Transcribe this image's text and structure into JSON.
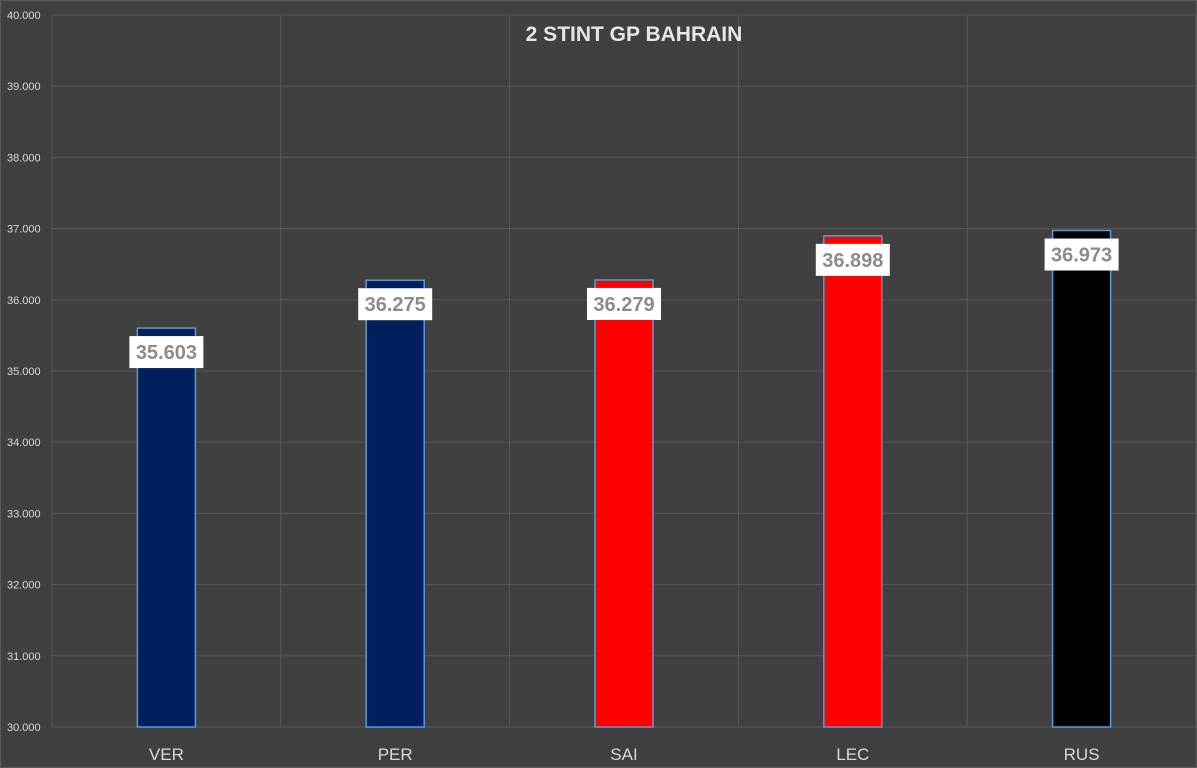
{
  "chart_data": {
    "type": "bar",
    "title": "2 STINT GP BAHRAIN",
    "xlabel": "",
    "ylabel": "",
    "categories": [
      "VER",
      "PER",
      "SAI",
      "LEC",
      "RUS"
    ],
    "values": [
      35.603,
      36.275,
      36.279,
      36.898,
      36.973
    ],
    "value_labels": [
      "35.603",
      "36.275",
      "36.279",
      "36.898",
      "36.973"
    ],
    "bar_colors": [
      "#001f5c",
      "#001f5c",
      "#ff0000",
      "#ff0000",
      "#000000"
    ],
    "ylim": [
      30.0,
      40.0
    ],
    "yticks": [
      30.0,
      31.0,
      32.0,
      33.0,
      34.0,
      35.0,
      36.0,
      37.0,
      38.0,
      39.0,
      40.0
    ],
    "ytick_labels": [
      "30.000",
      "31.000",
      "32.000",
      "33.000",
      "34.000",
      "35.000",
      "36.000",
      "37.000",
      "38.000",
      "39.000",
      "40.000"
    ],
    "grid": true,
    "legend": "none"
  },
  "colors": {
    "background": "#404040",
    "gridline": "#595959",
    "bar_outline": "#5b9bd5",
    "text": "#d9d9d9",
    "value_label_box": "#ffffff",
    "value_label_text": "#8c8c8c"
  }
}
